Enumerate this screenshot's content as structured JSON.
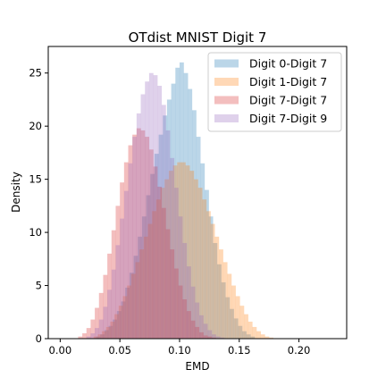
{
  "chart_data": {
    "type": "histogram",
    "title": "OTdist MNIST Digit 7",
    "xlabel": "EMD",
    "ylabel": "Density",
    "xlim": [
      -0.01,
      0.24
    ],
    "ylim": [
      0,
      27.5
    ],
    "xticks": [
      0.0,
      0.05,
      0.1,
      0.15,
      0.2
    ],
    "xtick_labels": [
      "0.00",
      "0.05",
      "0.10",
      "0.15",
      "0.20"
    ],
    "yticks": [
      0,
      5,
      10,
      15,
      20,
      25
    ],
    "ytick_labels": [
      "0",
      "5",
      "10",
      "15",
      "20",
      "25"
    ],
    "grid": false,
    "legend_position": "top-right",
    "bin_width": 0.0035,
    "series": [
      {
        "name": "Digit 0-Digit 7",
        "color": "#1f77b4",
        "alpha": 0.3,
        "bin_start": 0.03,
        "densities": [
          0.2,
          0.4,
          0.8,
          1.2,
          1.8,
          2.6,
          3.5,
          4.8,
          6.2,
          7.8,
          9.6,
          11.5,
          13.5,
          15.5,
          17.4,
          19.2,
          21.0,
          22.5,
          24.0,
          25.5,
          26.0,
          25.0,
          23.5,
          21.5,
          19.0,
          16.5,
          14.0,
          11.5,
          9.0,
          7.0,
          5.3,
          3.9,
          2.8,
          1.9,
          1.2,
          0.7,
          0.4,
          0.2
        ]
      },
      {
        "name": "Digit 1-Digit 7",
        "color": "#ff7f0e",
        "alpha": 0.3,
        "bin_start": 0.028,
        "densities": [
          0.2,
          0.4,
          0.7,
          1.1,
          1.6,
          2.3,
          3.1,
          4.0,
          5.0,
          6.1,
          7.2,
          8.4,
          9.6,
          10.8,
          12.0,
          13.1,
          14.2,
          15.0,
          15.8,
          16.3,
          16.6,
          16.6,
          16.3,
          15.8,
          15.0,
          14.2,
          13.1,
          12.0,
          10.8,
          9.6,
          8.4,
          7.2,
          6.1,
          5.0,
          4.0,
          3.1,
          2.3,
          1.6,
          1.1,
          0.7,
          0.4,
          0.2,
          0.1
        ]
      },
      {
        "name": "Digit 7-Digit 7",
        "color": "#d62728",
        "alpha": 0.3,
        "bin_start": 0.015,
        "densities": [
          0.2,
          0.5,
          1.0,
          1.8,
          2.9,
          4.3,
          6.0,
          8.0,
          10.2,
          12.5,
          14.7,
          16.6,
          18.2,
          19.2,
          19.8,
          19.6,
          19.0,
          17.8,
          16.2,
          14.3,
          12.3,
          10.3,
          8.4,
          6.6,
          5.0,
          3.7,
          2.6,
          1.7,
          1.1,
          0.6,
          0.3,
          0.2,
          0.1
        ]
      },
      {
        "name": "Digit 7-Digit 9",
        "color": "#9467bd",
        "alpha": 0.3,
        "bin_start": 0.022,
        "densities": [
          0.2,
          0.5,
          1.0,
          1.8,
          3.0,
          4.6,
          6.5,
          8.8,
          11.3,
          13.9,
          16.5,
          19.0,
          21.2,
          23.0,
          24.2,
          25.0,
          24.8,
          23.8,
          22.0,
          19.6,
          17.0,
          14.2,
          11.5,
          9.0,
          6.8,
          4.9,
          3.4,
          2.2,
          1.4,
          0.8,
          0.4,
          0.2,
          0.1
        ]
      }
    ]
  }
}
